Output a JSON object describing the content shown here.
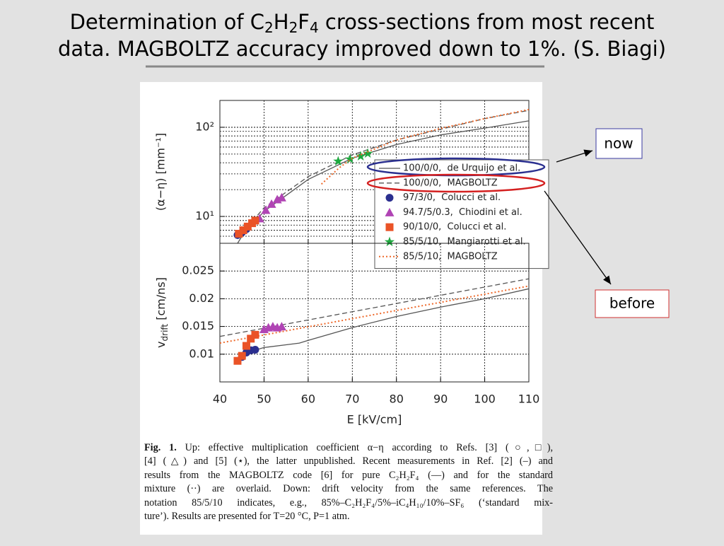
{
  "title": {
    "line1": [
      "Determination of C",
      "2",
      "H",
      "2",
      "F",
      "4",
      " cross-sections from most recent"
    ],
    "line2": "data. MAGBOLTZ accuracy improved down to 1%. (S. Biagi)"
  },
  "callouts": {
    "now": "now",
    "before": "before"
  },
  "chart_data": [
    {
      "type": "line",
      "y_label": "(α−η) [mm⁻¹]",
      "log_y": true,
      "grid": true,
      "legend": "upper right",
      "xlim": [
        40,
        110
      ],
      "xticks": [
        40,
        50,
        60,
        70,
        80,
        90,
        100,
        110
      ],
      "ylim": [
        5,
        200
      ],
      "yticks": [
        {
          "value": 10,
          "label": "10¹"
        },
        {
          "value": 100,
          "label": "10²"
        }
      ],
      "series": [
        {
          "name": "100/0/0,  de Urquijo et al.",
          "color": "#555555",
          "line": "solid",
          "marker": null,
          "x": [
            44,
            45,
            50,
            60,
            70,
            80,
            90,
            100,
            110
          ],
          "values": [
            5,
            6,
            11.4,
            26,
            45,
            64,
            82,
            98,
            118
          ]
        },
        {
          "name": "100/0/0,  MAGBOLTZ",
          "color": "#555555",
          "line": "dashed",
          "marker": null,
          "x": [
            44,
            45,
            50,
            60,
            70,
            80,
            90,
            100,
            110
          ],
          "values": [
            5.6,
            6.5,
            12.5,
            28,
            49,
            72,
            95,
            125,
            155
          ]
        },
        {
          "name": "97/3/0,  Colucci et al.",
          "color": "#2b2f8f",
          "line": null,
          "marker": "circle",
          "x": [
            44,
            45,
            46
          ],
          "values": [
            6.2,
            6.6,
            7.2
          ]
        },
        {
          "name": "94.7/5/0.3,  Chiodini et al.",
          "color": "#b044b4",
          "line": null,
          "marker": "triangle",
          "x": [
            49,
            50.4,
            51.7,
            53,
            54
          ],
          "values": [
            9.5,
            11.8,
            13.8,
            15.5,
            16.3
          ]
        },
        {
          "name": "90/10/0,  Colucci et al.",
          "color": "#ea5327",
          "line": null,
          "marker": "square",
          "x": [
            44.3,
            45.3,
            46.3,
            47.3,
            48
          ],
          "values": [
            6.4,
            7,
            7.7,
            8.4,
            9
          ]
        },
        {
          "name": "85/5/10,  Mangiarotti et al.",
          "color": "#1fa83f",
          "line": null,
          "marker": "star",
          "x": [
            66.8,
            69.5,
            71.9,
            73.5
          ],
          "values": [
            41.6,
            43.9,
            47.3,
            50.8
          ]
        },
        {
          "name": "85/5/10,  MAGBOLTZ",
          "color": "#ee6a2c",
          "line": "dotted",
          "marker": null,
          "x": [
            63,
            67,
            70,
            80,
            90,
            100,
            110
          ],
          "values": [
            23,
            35,
            45,
            72,
            97,
            125,
            158
          ]
        }
      ]
    },
    {
      "type": "line",
      "y_label": {
        "base": "v",
        "sub": "drift",
        "unit": " [cm/ns]"
      },
      "x_label": "E [kV/cm]",
      "grid": true,
      "xlim": [
        40,
        110
      ],
      "xticks": [
        40,
        50,
        60,
        70,
        80,
        90,
        100,
        110
      ],
      "ylim": [
        0.005,
        0.03
      ],
      "yticks": [
        0.01,
        0.015,
        0.02,
        0.025
      ],
      "series": [
        {
          "color": "#555555",
          "line": "solid",
          "marker": null,
          "x": [
            44,
            47,
            50,
            55,
            58,
            60,
            70,
            80,
            90,
            100,
            110
          ],
          "values": [
            0.0087,
            0.0105,
            0.0112,
            0.0117,
            0.012,
            0.0125,
            0.0148,
            0.0168,
            0.0185,
            0.02,
            0.0218
          ]
        },
        {
          "color": "#555555",
          "line": "dashed",
          "marker": null,
          "x": [
            40,
            110
          ],
          "values": [
            0.0132,
            0.0236
          ]
        },
        {
          "color": "#ee6a2c",
          "line": "dotted",
          "marker": null,
          "x": [
            40,
            110
          ],
          "values": [
            0.012,
            0.0223
          ]
        },
        {
          "color": "#2b2f8f",
          "line": null,
          "marker": "circle",
          "x": [
            45,
            46,
            47,
            48
          ],
          "values": [
            0.0095,
            0.0103,
            0.0107,
            0.0108
          ]
        },
        {
          "color": "#ea5327",
          "line": null,
          "marker": "square",
          "x": [
            44,
            45,
            46,
            47,
            48
          ],
          "values": [
            0.0088,
            0.0097,
            0.0115,
            0.0128,
            0.0135
          ]
        },
        {
          "color": "#b044b4",
          "line": null,
          "marker": "triangle",
          "x": [
            50,
            51,
            52,
            53,
            54
          ],
          "values": [
            0.0145,
            0.0148,
            0.015,
            0.0148,
            0.015
          ]
        }
      ]
    }
  ],
  "caption": {
    "label": "Fig. 1.",
    "lines": [
      "Up: effective multiplication coefficient α−η according to Refs. [3] (○,□),",
      "[4] (△) and [5] (⋆), the latter unpublished. Recent measurements in Ref. [2] (–) and",
      "results from the MAGBOLTZ code [6] for pure C₂H₂F₄ (––) and for the standard",
      "mixture (··) are overlaid. Down: drift velocity from the same references. The",
      "notation 85/5/10 indicates, e.g., 85%–C₂H₂F₄/5%–iC₄H₁₀/10%–SF₆ (‘standard mix-",
      "ture’). Results are presented for T=20 °C, P=1 atm."
    ]
  }
}
